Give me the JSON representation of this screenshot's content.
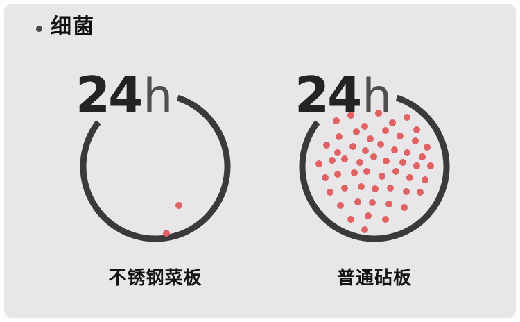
{
  "header": {
    "bullet_icon": "bullet-dot-icon",
    "title": "细菌"
  },
  "colors": {
    "panel_bg": "#e9e6e9",
    "ring": "#3a3a3c",
    "dot": "#e06262",
    "title": "#111111"
  },
  "panels": [
    {
      "time": {
        "number": "24",
        "unit": "h"
      },
      "caption": "不锈钢菜板",
      "dots": [
        [
          144,
          166
        ],
        [
          126,
          206
        ]
      ]
    },
    {
      "time": {
        "number": "24",
        "unit": "h"
      },
      "caption": "普通砧板",
      "dots": [
        [
          55,
          44
        ],
        [
          76,
          36
        ],
        [
          96,
          52
        ],
        [
          116,
          33
        ],
        [
          136,
          47
        ],
        [
          157,
          39
        ],
        [
          171,
          57
        ],
        [
          59,
          67
        ],
        [
          84,
          60
        ],
        [
          104,
          70
        ],
        [
          126,
          58
        ],
        [
          147,
          66
        ],
        [
          169,
          73
        ],
        [
          186,
          82
        ],
        [
          41,
          79
        ],
        [
          57,
          90
        ],
        [
          79,
          81
        ],
        [
          97,
          87
        ],
        [
          119,
          78
        ],
        [
          139,
          86
        ],
        [
          157,
          90
        ],
        [
          179,
          96
        ],
        [
          30,
          106
        ],
        [
          49,
          101
        ],
        [
          67,
          99
        ],
        [
          89,
          104
        ],
        [
          109,
          96
        ],
        [
          127,
          102
        ],
        [
          151,
          104
        ],
        [
          171,
          109
        ],
        [
          191,
          109
        ],
        [
          39,
          126
        ],
        [
          57,
          121
        ],
        [
          81,
          119
        ],
        [
          99,
          117
        ],
        [
          121,
          124
        ],
        [
          141,
          117
        ],
        [
          161,
          126
        ],
        [
          183,
          129
        ],
        [
          46,
          147
        ],
        [
          67,
          141
        ],
        [
          91,
          139
        ],
        [
          111,
          142
        ],
        [
          133,
          141
        ],
        [
          156,
          146
        ],
        [
          176,
          147
        ],
        [
          61,
          166
        ],
        [
          86,
          161
        ],
        [
          107,
          162
        ],
        [
          131,
          164
        ],
        [
          153,
          169
        ],
        [
          76,
          186
        ],
        [
          101,
          181
        ],
        [
          126,
          186
        ],
        [
          96,
          201
        ]
      ]
    }
  ]
}
